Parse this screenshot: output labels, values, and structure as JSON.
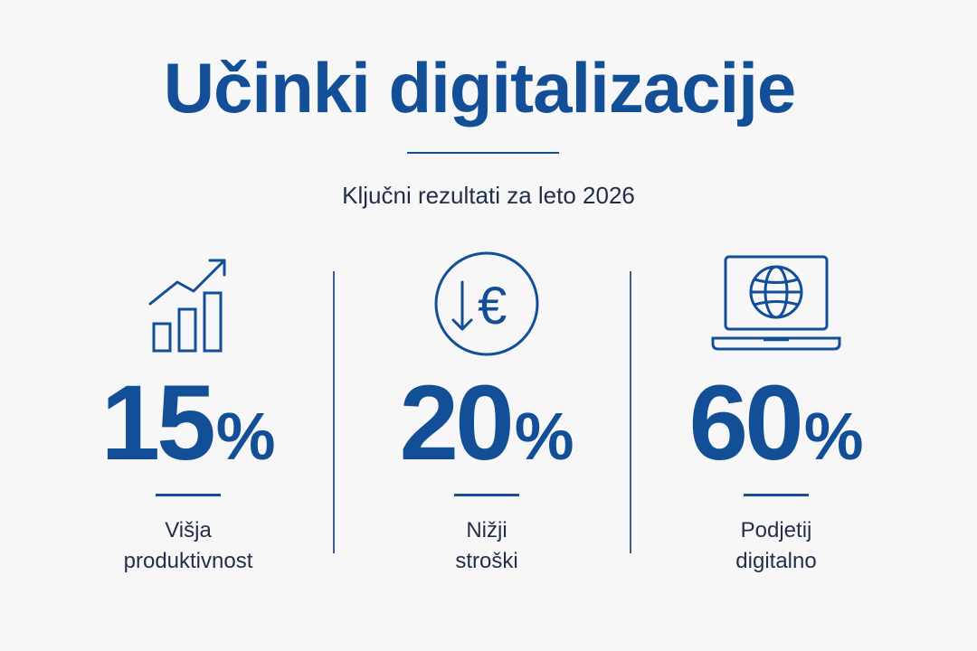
{
  "title": "Učinki digitalizacije",
  "subtitle": "Ključni rezultati za leto 2026",
  "colors": {
    "primary": "#134f96",
    "text": "#1f2f48",
    "background": "#f7f7f8"
  },
  "stats": [
    {
      "icon": "growth-chart-icon",
      "value": "15",
      "unit": "%",
      "label_line1": "Višja",
      "label_line2": "produktivnost"
    },
    {
      "icon": "euro-decrease-icon",
      "value": "20",
      "unit": "%",
      "label_line1": "Nižji",
      "label_line2": "stroški"
    },
    {
      "icon": "laptop-globe-icon",
      "value": "60",
      "unit": "%",
      "label_line1": "Podjetij",
      "label_line2": "digitalno"
    }
  ]
}
